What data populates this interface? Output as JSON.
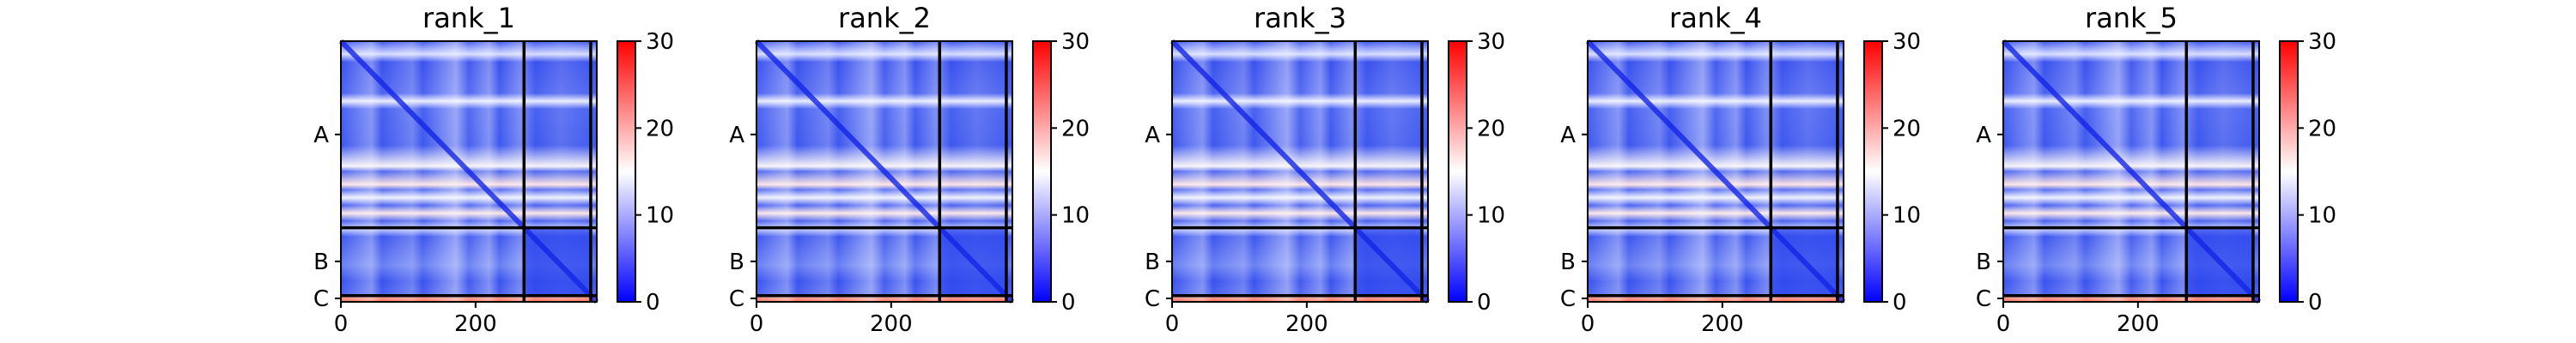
{
  "chart_data": {
    "type": "heatmap",
    "panels": [
      {
        "title": "rank_1"
      },
      {
        "title": "rank_2"
      },
      {
        "title": "rank_3"
      },
      {
        "title": "rank_4"
      },
      {
        "title": "rank_5"
      }
    ],
    "x_ticks": [
      0,
      200
    ],
    "matrix_size": 380,
    "chain_boundaries": [
      272,
      371
    ],
    "chain_labels": [
      "A",
      "B",
      "C"
    ],
    "chain_label_positions": [
      136,
      321,
      375
    ],
    "colorbar": {
      "min": 0,
      "max": 30,
      "ticks": [
        0,
        10,
        20,
        30
      ],
      "colors": [
        "#0000ff",
        "#ffffff",
        "#ff0000"
      ]
    },
    "grid": false
  }
}
